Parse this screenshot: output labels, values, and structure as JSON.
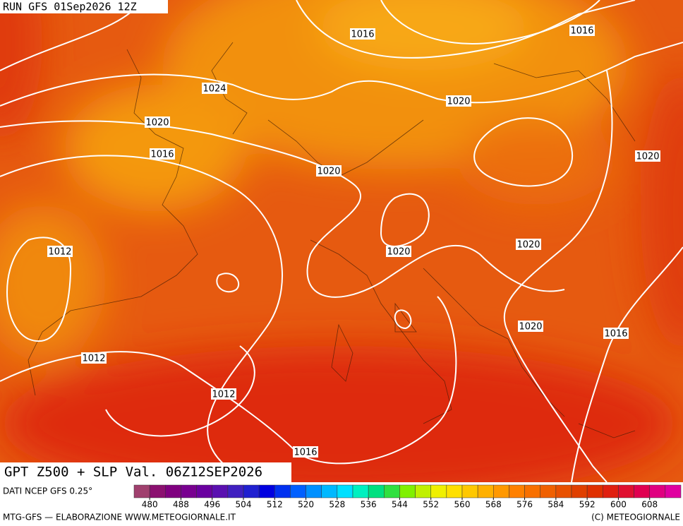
{
  "header": {
    "run": "RUN GFS 01Sep2026 12Z"
  },
  "map": {
    "title": "GPT Z500 + SLP Val. 06Z12SEP2026",
    "isobar_labels": [
      1016,
      1016,
      1024,
      1020,
      1020,
      1016,
      1020,
      1020,
      1012,
      1020,
      1020,
      1020,
      1016,
      1012,
      1012,
      1016
    ]
  },
  "colorbar": {
    "source": "DATI NCEP GFS 0.25°",
    "labels": [
      480,
      488,
      496,
      504,
      512,
      520,
      528,
      536,
      544,
      552,
      560,
      568,
      576,
      584,
      592,
      600,
      608
    ],
    "colors": [
      "#a0406e",
      "#8b1070",
      "#800080",
      "#780090",
      "#6a00a0",
      "#5a10b0",
      "#4020c0",
      "#2020d0",
      "#0000e0",
      "#0030f0",
      "#0060ff",
      "#0090ff",
      "#00b8ff",
      "#00e0ff",
      "#00f0c0",
      "#00e080",
      "#30e040",
      "#80f000",
      "#c0f000",
      "#f0f000",
      "#ffe000",
      "#ffc800",
      "#ffb000",
      "#ff9800",
      "#ff8000",
      "#f87000",
      "#f06000",
      "#e85000",
      "#e04000",
      "#e03000",
      "#e02010",
      "#e01030",
      "#e00050",
      "#e00080",
      "#e000a0"
    ]
  },
  "footer": {
    "left": "MTG-GFS — ELABORAZIONE WWW.METEOGIORNALE.IT",
    "right": "(C) METEOGIORNALE"
  }
}
